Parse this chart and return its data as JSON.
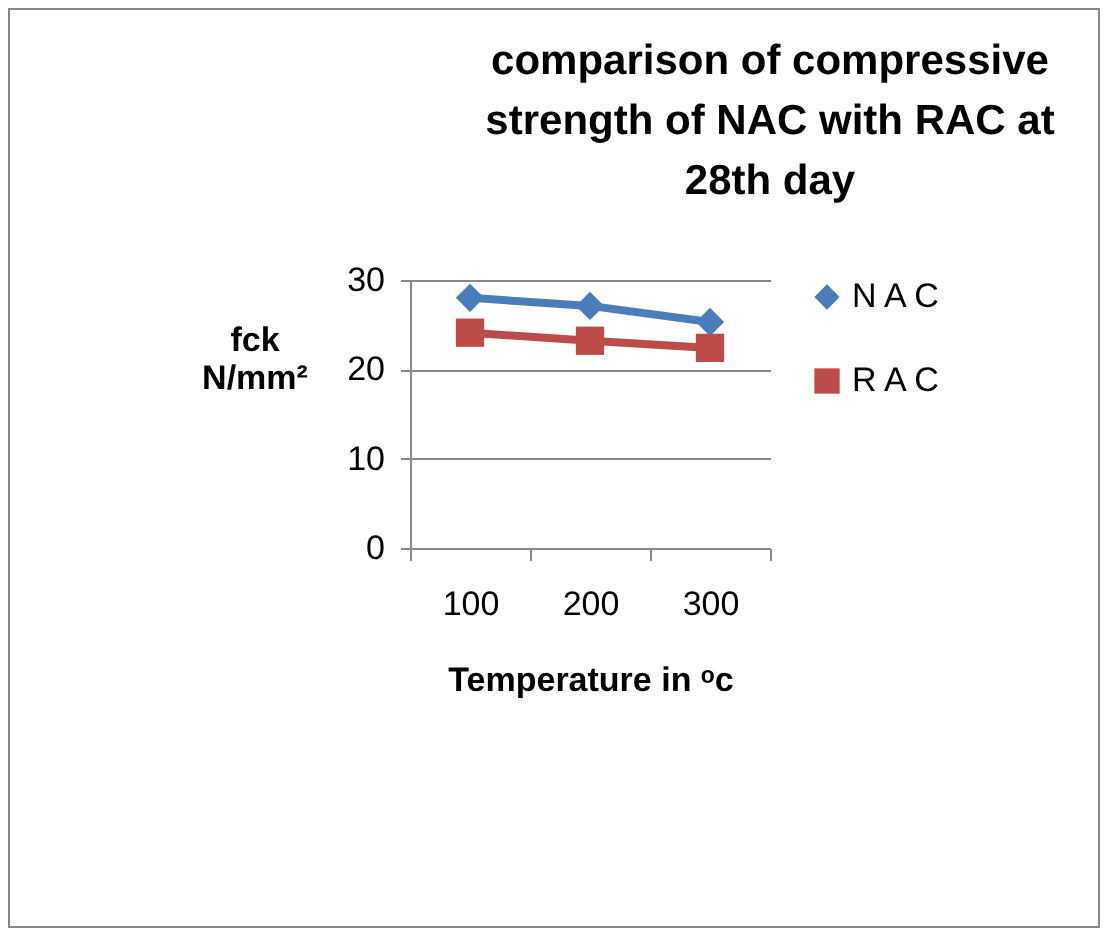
{
  "chart_data": {
    "type": "line",
    "title": "comparison of compressive strength of NAC with RAC at 28th day",
    "xlabel": "Temperature in ᵒc",
    "ylabel": "fck N/mm²",
    "categories": [
      "100",
      "200",
      "300"
    ],
    "series": [
      {
        "name": "N A C",
        "color": "#4a7ebb",
        "marker": "diamond",
        "values": [
          28.0,
          27.1,
          25.3
        ]
      },
      {
        "name": "R A C",
        "color": "#be4b48",
        "marker": "square",
        "values": [
          24.1,
          23.2,
          22.4
        ]
      }
    ],
    "ylim": [
      0,
      30
    ],
    "yticks": [
      0,
      10,
      20,
      30
    ],
    "grid": "y",
    "legend": "right",
    "line_style": "solid"
  }
}
